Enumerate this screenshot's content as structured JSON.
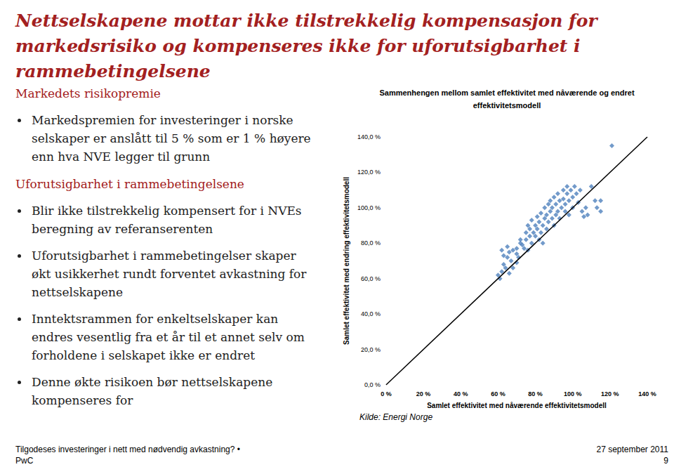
{
  "slide": {
    "title": [
      "Nettselskapene mottar ikke tilstrekkelig kompensasjon for",
      "markedsrisiko og kompenseres ikke for uforutsigbarhet i",
      "rammebetingelsene"
    ],
    "sections": [
      {
        "heading": "Markedets risikopremie",
        "bullets": [
          [
            "Markedspremien for investeringer i norske",
            "selskaper er anslått til 5 % som er 1 % høyere",
            "enn hva NVE legger til grunn"
          ]
        ]
      },
      {
        "heading": "Uforutsigbarhet i rammebetingelsene",
        "bullets": [
          [
            "Blir ikke tilstrekkelig kompensert for i NVEs",
            "beregning av referanserenten"
          ],
          [
            "Uforutsigbarhet i rammebetingelser skaper",
            "økt usikkerhet rundt forventet avkastning for",
            "nettselskapene"
          ],
          [
            "Inntektsrammen for enkeltselskaper kan",
            "endres vesentlig fra et år til et annet selv om",
            "forholdene i selskapet ikke er endret"
          ],
          [
            "Denne økte risikoen bør nettselskapene",
            "kompenseres for"
          ]
        ]
      }
    ],
    "source": "Kilde: Energi Norge",
    "footer": {
      "text": "Tilgodeses investeringer i nett med nødvendig avkastning? •",
      "company": "PwC",
      "date": "27 september 2011",
      "page": 9
    }
  },
  "chart_data": {
    "type": "scatter",
    "title": [
      "Sammenhengen mellom samlet effektivitet med nåværende og endret",
      "effektivitetsmodell"
    ],
    "x_label": "Samlet effektivitet med nåværende effektivitetsmodell",
    "y_label": "Samlet effektivitet med endring effektivitetsmodell",
    "xlim": [
      0,
      140
    ],
    "xticks": [
      {
        "value": 0,
        "label": "0 %"
      },
      {
        "value": 20,
        "label": "20 %"
      },
      {
        "value": 40,
        "label": "40 %"
      },
      {
        "value": 60,
        "label": "60 %"
      },
      {
        "value": 80,
        "label": "80 %"
      },
      {
        "value": 100,
        "label": "100 %"
      },
      {
        "value": 120,
        "label": "120 %"
      },
      {
        "value": 140,
        "label": "140 %"
      }
    ],
    "ylim": [
      0,
      140
    ],
    "yticks": [
      {
        "value": 0,
        "label": "0,0 %"
      },
      {
        "value": 20,
        "label": "20,0 %"
      },
      {
        "value": 40,
        "label": "40,0 %"
      },
      {
        "value": 60,
        "label": "60,0 %"
      },
      {
        "value": 80,
        "label": "80,0 %"
      },
      {
        "value": 100,
        "label": "100,0 %"
      },
      {
        "value": 120,
        "label": "120,0 %"
      },
      {
        "value": 140,
        "label": "140,0 %"
      }
    ],
    "grid": false,
    "series": [
      {
        "type": "scatter",
        "color": "#4f81bd",
        "marker": "diamond",
        "x": [
          60,
          61,
          62,
          62,
          63,
          63,
          64,
          65,
          65,
          66,
          66,
          67,
          68,
          68,
          70,
          70,
          70,
          71,
          72,
          72,
          73,
          74,
          75,
          75,
          76,
          76,
          77,
          77,
          78,
          78,
          79,
          80,
          80,
          81,
          81,
          82,
          82,
          83,
          83,
          84,
          84,
          85,
          85,
          86,
          86,
          87,
          87,
          88,
          88,
          89,
          89,
          90,
          90,
          91,
          91,
          92,
          92,
          93,
          93,
          94,
          95,
          95,
          96,
          96,
          97,
          97,
          98,
          98,
          99,
          100,
          100,
          101,
          102,
          103,
          104,
          105,
          106,
          107,
          108,
          110,
          112,
          113,
          115,
          115,
          121
        ],
        "values": [
          62,
          60,
          64,
          76,
          68,
          73,
          66,
          72,
          78,
          75,
          63,
          70,
          76,
          66,
          77,
          74,
          69,
          72,
          80,
          82,
          79,
          77,
          82,
          86,
          76,
          90,
          84,
          88,
          80,
          93,
          86,
          90,
          84,
          95,
          88,
          82,
          92,
          97,
          86,
          90,
          80,
          94,
          100,
          88,
          96,
          102,
          92,
          98,
          104,
          94,
          100,
          106,
          90,
          96,
          102,
          108,
          98,
          104,
          94,
          100,
          110,
          105,
          98,
          102,
          112,
          108,
          104,
          96,
          110,
          106,
          100,
          112,
          108,
          103,
          110,
          98,
          95,
          100,
          96,
          112,
          104,
          100,
          98,
          104,
          135
        ]
      },
      {
        "type": "line",
        "color": "#000000",
        "x": [
          0,
          140
        ],
        "values": [
          0,
          140
        ]
      }
    ]
  }
}
